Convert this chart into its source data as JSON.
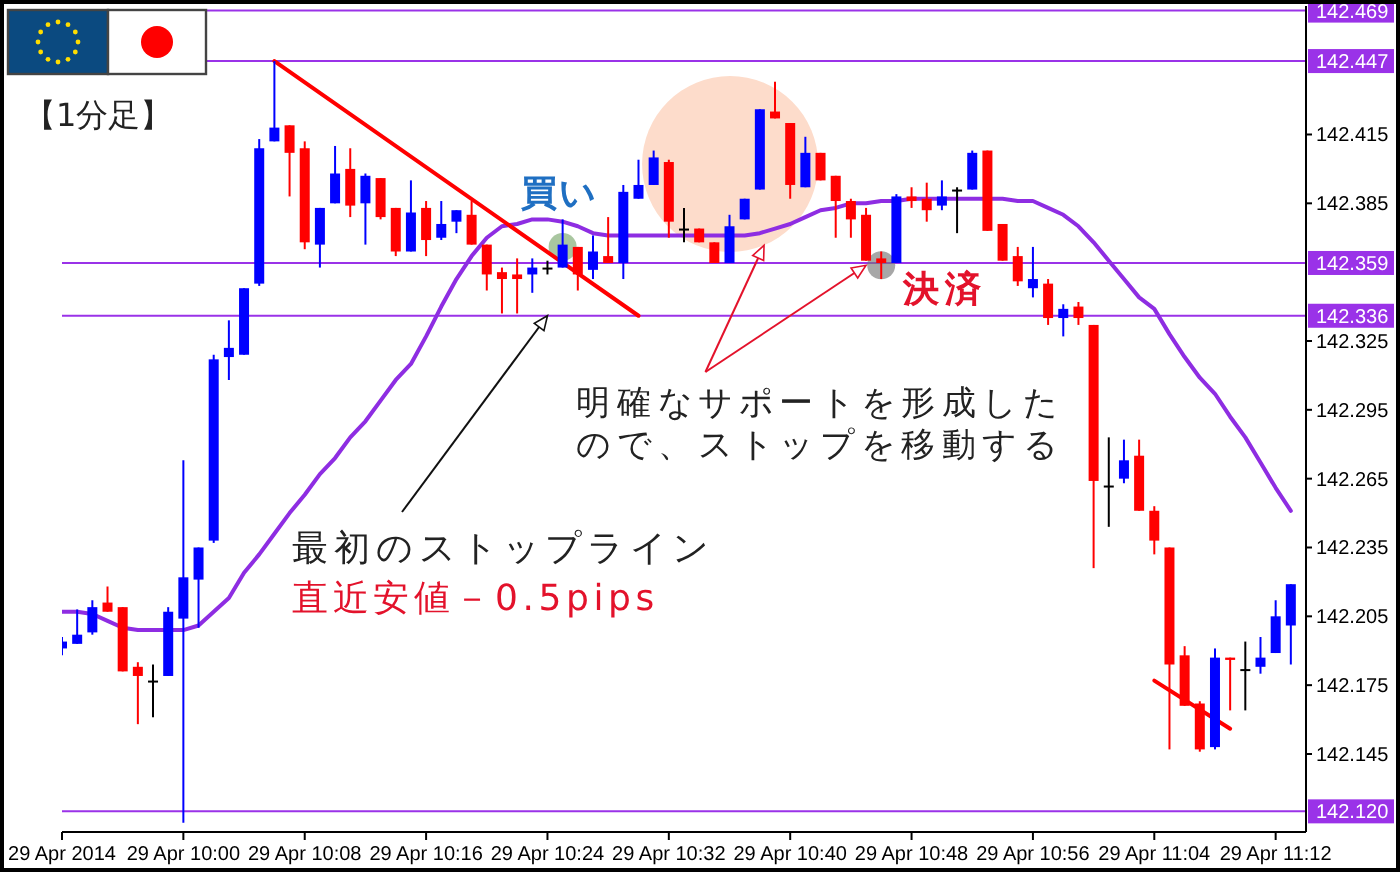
{
  "chart_data": {
    "type": "candlestick",
    "title": "【1分足】",
    "x": [
      "2014-04-29T09:52",
      "2014-04-29T09:53",
      "2014-04-29T09:54",
      "2014-04-29T09:55",
      "2014-04-29T09:56",
      "2014-04-29T09:57",
      "2014-04-29T09:58",
      "2014-04-29T09:59",
      "2014-04-29T10:00",
      "2014-04-29T10:01",
      "2014-04-29T10:02",
      "2014-04-29T10:03",
      "2014-04-29T10:04",
      "2014-04-29T10:05",
      "2014-04-29T10:06",
      "2014-04-29T10:07",
      "2014-04-29T10:08",
      "2014-04-29T10:09",
      "2014-04-29T10:10",
      "2014-04-29T10:11",
      "2014-04-29T10:12",
      "2014-04-29T10:13",
      "2014-04-29T10:14",
      "2014-04-29T10:15",
      "2014-04-29T10:16",
      "2014-04-29T10:17",
      "2014-04-29T10:18",
      "2014-04-29T10:19",
      "2014-04-29T10:20",
      "2014-04-29T10:21",
      "2014-04-29T10:22",
      "2014-04-29T10:23",
      "2014-04-29T10:24",
      "2014-04-29T10:25",
      "2014-04-29T10:26",
      "2014-04-29T10:27",
      "2014-04-29T10:28",
      "2014-04-29T10:29",
      "2014-04-29T10:30",
      "2014-04-29T10:31",
      "2014-04-29T10:32",
      "2014-04-29T10:33",
      "2014-04-29T10:34",
      "2014-04-29T10:35",
      "2014-04-29T10:36",
      "2014-04-29T10:37",
      "2014-04-29T10:38",
      "2014-04-29T10:39",
      "2014-04-29T10:40",
      "2014-04-29T10:41",
      "2014-04-29T10:42",
      "2014-04-29T10:43",
      "2014-04-29T10:44",
      "2014-04-29T10:45",
      "2014-04-29T10:46",
      "2014-04-29T10:47",
      "2014-04-29T10:48",
      "2014-04-29T10:49",
      "2014-04-29T10:50",
      "2014-04-29T10:51",
      "2014-04-29T10:52",
      "2014-04-29T10:53",
      "2014-04-29T10:54",
      "2014-04-29T10:55",
      "2014-04-29T10:56",
      "2014-04-29T10:57",
      "2014-04-29T10:58",
      "2014-04-29T10:59",
      "2014-04-29T11:00",
      "2014-04-29T11:01",
      "2014-04-29T11:02",
      "2014-04-29T11:03",
      "2014-04-29T11:04",
      "2014-04-29T11:05",
      "2014-04-29T11:06",
      "2014-04-29T11:07",
      "2014-04-29T11:08",
      "2014-04-29T11:09",
      "2014-04-29T11:10",
      "2014-04-29T11:11",
      "2014-04-29T11:12",
      "2014-04-29T11:13"
    ],
    "ohlc": [
      [
        142.191,
        142.196,
        142.188,
        142.194
      ],
      [
        142.193,
        142.208,
        142.193,
        142.197
      ],
      [
        142.198,
        142.212,
        142.197,
        142.209
      ],
      [
        142.211,
        142.218,
        142.207,
        142.207
      ],
      [
        142.209,
        142.209,
        142.181,
        142.181
      ],
      [
        142.183,
        142.185,
        142.158,
        142.179
      ],
      [
        142.177,
        142.184,
        142.161,
        142.177
      ],
      [
        142.179,
        142.209,
        142.179,
        142.207
      ],
      [
        142.204,
        142.273,
        142.115,
        142.222
      ],
      [
        142.221,
        142.235,
        142.2,
        142.235
      ],
      [
        142.238,
        142.319,
        142.237,
        142.317
      ],
      [
        142.318,
        142.334,
        142.308,
        142.322
      ],
      [
        142.319,
        142.348,
        142.319,
        142.348
      ],
      [
        142.35,
        142.413,
        142.349,
        142.409
      ],
      [
        142.412,
        142.447,
        142.412,
        142.418
      ],
      [
        142.419,
        142.419,
        142.388,
        142.407
      ],
      [
        142.409,
        142.412,
        142.365,
        142.368
      ],
      [
        142.367,
        142.383,
        142.357,
        142.383
      ],
      [
        142.385,
        142.41,
        142.385,
        142.398
      ],
      [
        142.4,
        142.409,
        142.379,
        142.384
      ],
      [
        142.385,
        142.398,
        142.367,
        142.397
      ],
      [
        142.396,
        142.396,
        142.378,
        142.379
      ],
      [
        142.383,
        142.383,
        142.362,
        142.364
      ],
      [
        142.364,
        142.395,
        142.364,
        142.381
      ],
      [
        142.383,
        142.386,
        142.362,
        142.369
      ],
      [
        142.37,
        142.386,
        142.369,
        142.376
      ],
      [
        142.377,
        142.382,
        142.372,
        142.382
      ],
      [
        142.38,
        142.386,
        142.367,
        142.367
      ],
      [
        142.367,
        142.367,
        142.347,
        142.354
      ],
      [
        142.355,
        142.357,
        142.337,
        142.352
      ],
      [
        142.354,
        142.361,
        142.337,
        142.352
      ],
      [
        142.354,
        142.361,
        142.346,
        142.357
      ],
      [
        142.357,
        142.36,
        142.354,
        142.357
      ],
      [
        142.357,
        142.378,
        142.357,
        142.367
      ],
      [
        142.366,
        142.366,
        142.347,
        142.354
      ],
      [
        142.356,
        142.371,
        142.352,
        142.364
      ],
      [
        142.362,
        142.379,
        142.359,
        142.359
      ],
      [
        142.359,
        142.393,
        142.352,
        142.39
      ],
      [
        142.387,
        142.404,
        142.387,
        142.393
      ],
      [
        142.393,
        142.408,
        142.393,
        142.405
      ],
      [
        142.403,
        142.404,
        142.37,
        142.377
      ],
      [
        142.374,
        142.383,
        142.368,
        142.374
      ],
      [
        142.374,
        142.374,
        142.368,
        142.368
      ],
      [
        142.368,
        142.368,
        142.359,
        142.359
      ],
      [
        142.359,
        142.38,
        142.359,
        142.375
      ],
      [
        142.378,
        142.387,
        142.378,
        142.387
      ],
      [
        142.391,
        142.426,
        142.391,
        142.426
      ],
      [
        142.425,
        142.438,
        142.422,
        142.422
      ],
      [
        142.42,
        142.42,
        142.387,
        142.393
      ],
      [
        142.392,
        142.414,
        142.392,
        142.407
      ],
      [
        142.407,
        142.407,
        142.395,
        142.395
      ],
      [
        142.397,
        142.397,
        142.37,
        142.386
      ],
      [
        142.386,
        142.387,
        142.37,
        142.378
      ],
      [
        142.38,
        142.383,
        142.36,
        142.36
      ],
      [
        142.361,
        142.364,
        142.352,
        142.359
      ],
      [
        142.359,
        142.389,
        142.359,
        142.388
      ],
      [
        142.388,
        142.392,
        142.383,
        142.386
      ],
      [
        142.387,
        142.394,
        142.377,
        142.382
      ],
      [
        142.384,
        142.395,
        142.382,
        142.388
      ],
      [
        142.391,
        142.392,
        142.372,
        142.391
      ],
      [
        142.391,
        142.408,
        142.391,
        142.407
      ],
      [
        142.408,
        142.408,
        142.373,
        142.373
      ],
      [
        142.376,
        142.376,
        142.36,
        142.36
      ],
      [
        142.362,
        142.366,
        142.349,
        142.351
      ],
      [
        142.348,
        142.366,
        142.344,
        142.352
      ],
      [
        142.35,
        142.352,
        142.332,
        142.335
      ],
      [
        142.335,
        142.341,
        142.327,
        142.339
      ],
      [
        142.34,
        142.342,
        142.332,
        142.335
      ],
      [
        142.332,
        142.332,
        142.226,
        142.264
      ],
      [
        142.262,
        142.283,
        142.244,
        142.262
      ],
      [
        142.265,
        142.282,
        142.263,
        142.273
      ],
      [
        142.275,
        142.282,
        142.251,
        142.251
      ],
      [
        142.251,
        142.253,
        142.232,
        142.238
      ],
      [
        142.235,
        142.235,
        142.147,
        142.184
      ],
      [
        142.188,
        142.192,
        142.166,
        142.166
      ],
      [
        142.167,
        142.168,
        142.146,
        142.147
      ],
      [
        142.148,
        142.191,
        142.147,
        142.187
      ],
      [
        142.187,
        142.187,
        142.164,
        142.186
      ],
      [
        142.182,
        142.194,
        142.164,
        142.182
      ],
      [
        142.183,
        142.196,
        142.18,
        142.187
      ],
      [
        142.189,
        142.212,
        142.189,
        142.205
      ],
      [
        142.201,
        142.219,
        142.184,
        142.219
      ]
    ],
    "colors": [
      "#0000ff",
      "#0000ff",
      "#0000ff",
      "#ff0000",
      "#ff0000",
      "#ff0000",
      "#000000",
      "#0000ff",
      "#0000ff",
      "#0000ff",
      "#0000ff",
      "#0000ff",
      "#0000ff",
      "#0000ff",
      "#0000ff",
      "#ff0000",
      "#ff0000",
      "#0000ff",
      "#0000ff",
      "#ff0000",
      "#0000ff",
      "#ff0000",
      "#ff0000",
      "#0000ff",
      "#ff0000",
      "#0000ff",
      "#0000ff",
      "#ff0000",
      "#ff0000",
      "#ff0000",
      "#ff0000",
      "#0000ff",
      "#000000",
      "#0000ff",
      "#ff0000",
      "#0000ff",
      "#ff0000",
      "#0000ff",
      "#0000ff",
      "#0000ff",
      "#ff0000",
      "#000000",
      "#ff0000",
      "#ff0000",
      "#0000ff",
      "#0000ff",
      "#0000ff",
      "#ff0000",
      "#ff0000",
      "#0000ff",
      "#ff0000",
      "#ff0000",
      "#ff0000",
      "#ff0000",
      "#ff0000",
      "#0000ff",
      "#ff0000",
      "#ff0000",
      "#0000ff",
      "#000000",
      "#0000ff",
      "#ff0000",
      "#ff0000",
      "#ff0000",
      "#0000ff",
      "#ff0000",
      "#0000ff",
      "#ff0000",
      "#ff0000",
      "#000000",
      "#0000ff",
      "#ff0000",
      "#ff0000",
      "#ff0000",
      "#ff0000",
      "#ff0000",
      "#0000ff",
      "#ff0000",
      "#000000",
      "#0000ff",
      "#0000ff",
      "#0000ff"
    ],
    "series": [
      {
        "type": "line",
        "color": "#8e2de2",
        "values": [
          142.207,
          142.207,
          142.206,
          142.203,
          142.2,
          142.199,
          142.199,
          142.199,
          142.199,
          142.201,
          142.207,
          142.213,
          142.224,
          142.232,
          142.241,
          142.25,
          142.258,
          142.267,
          142.274,
          142.283,
          142.29,
          142.299,
          142.308,
          142.315,
          142.327,
          142.34,
          142.352,
          142.362,
          142.37,
          142.375,
          142.376,
          142.378,
          142.378,
          142.377,
          142.375,
          142.372,
          142.371,
          142.371,
          142.371,
          142.371,
          142.371,
          142.371,
          142.371,
          142.371,
          142.371,
          142.371,
          142.372,
          142.374,
          142.376,
          142.379,
          142.382,
          142.383,
          142.385,
          142.385,
          142.386,
          142.386,
          142.387,
          142.387,
          142.387,
          142.387,
          142.387,
          142.387,
          142.387,
          142.386,
          142.386,
          142.383,
          142.38,
          142.375,
          142.368,
          142.36,
          142.352,
          142.344,
          142.339,
          142.328,
          142.318,
          142.309,
          142.302,
          142.292,
          142.283,
          142.272,
          142.261,
          142.251
        ]
      },
      {
        "type": "line",
        "color": "#ff0000",
        "x": [
          "2014-04-29T10:06",
          "2014-04-29T10:30"
        ],
        "values": [
          142.447,
          142.336
        ]
      },
      {
        "type": "line",
        "color": "#ff0000",
        "x": [
          "2014-04-29T11:04",
          "2014-04-29T11:09"
        ],
        "values": [
          142.177,
          142.156
        ]
      }
    ],
    "xlim": [
      "2014-04-29T09:52",
      "2014-04-29T11:14"
    ],
    "ylim": [
      142.111,
      142.471
    ],
    "xticks": [
      {
        "value": "2014-04-29T09:52",
        "label": "29 Apr 2014"
      },
      {
        "value": "2014-04-29T10:00",
        "label": "29 Apr 10:00"
      },
      {
        "value": "2014-04-29T10:08",
        "label": "29 Apr 10:08"
      },
      {
        "value": "2014-04-29T10:16",
        "label": "29 Apr 10:16"
      },
      {
        "value": "2014-04-29T10:24",
        "label": "29 Apr 10:24"
      },
      {
        "value": "2014-04-29T10:32",
        "label": "29 Apr 10:32"
      },
      {
        "value": "2014-04-29T10:40",
        "label": "29 Apr 10:40"
      },
      {
        "value": "2014-04-29T10:48",
        "label": "29 Apr 10:48"
      },
      {
        "value": "2014-04-29T10:56",
        "label": "29 Apr 10:56"
      },
      {
        "value": "2014-04-29T11:04",
        "label": "29 Apr 11:04"
      },
      {
        "value": "2014-04-29T11:12",
        "label": "29 Apr 11:12"
      }
    ],
    "yticks": [
      142.145,
      142.175,
      142.205,
      142.235,
      142.265,
      142.295,
      142.325,
      142.385,
      142.415
    ],
    "ref_lines": [
      {
        "axis": "y",
        "value": 142.469,
        "label": "142.469",
        "color": "#9a32e8"
      },
      {
        "axis": "y",
        "value": 142.447,
        "label": "142.447",
        "color": "#9a32e8"
      },
      {
        "axis": "y",
        "value": 142.359,
        "label": "142.359",
        "color": "#9a32e8"
      },
      {
        "axis": "y",
        "value": 142.336,
        "label": "142.336",
        "color": "#9a32e8"
      },
      {
        "axis": "y",
        "value": 142.12,
        "label": "142.120",
        "color": "#9a32e8"
      }
    ],
    "annotations": [
      {
        "text": "買い",
        "x": "2014-04-29T10:25",
        "y": 142.366
      },
      {
        "text": "決済",
        "x": "2014-04-29T10:46",
        "y": 142.358
      },
      {
        "text": "最初のストップライン",
        "x": "2014-04-29T10:24",
        "y": 142.336
      },
      "直近安値－0.5pips",
      {
        "text": "明確なサポートを形成したので、ストップを移動する",
        "x": "2014-04-29T10:45",
        "y": 142.358
      }
    ]
  }
}
